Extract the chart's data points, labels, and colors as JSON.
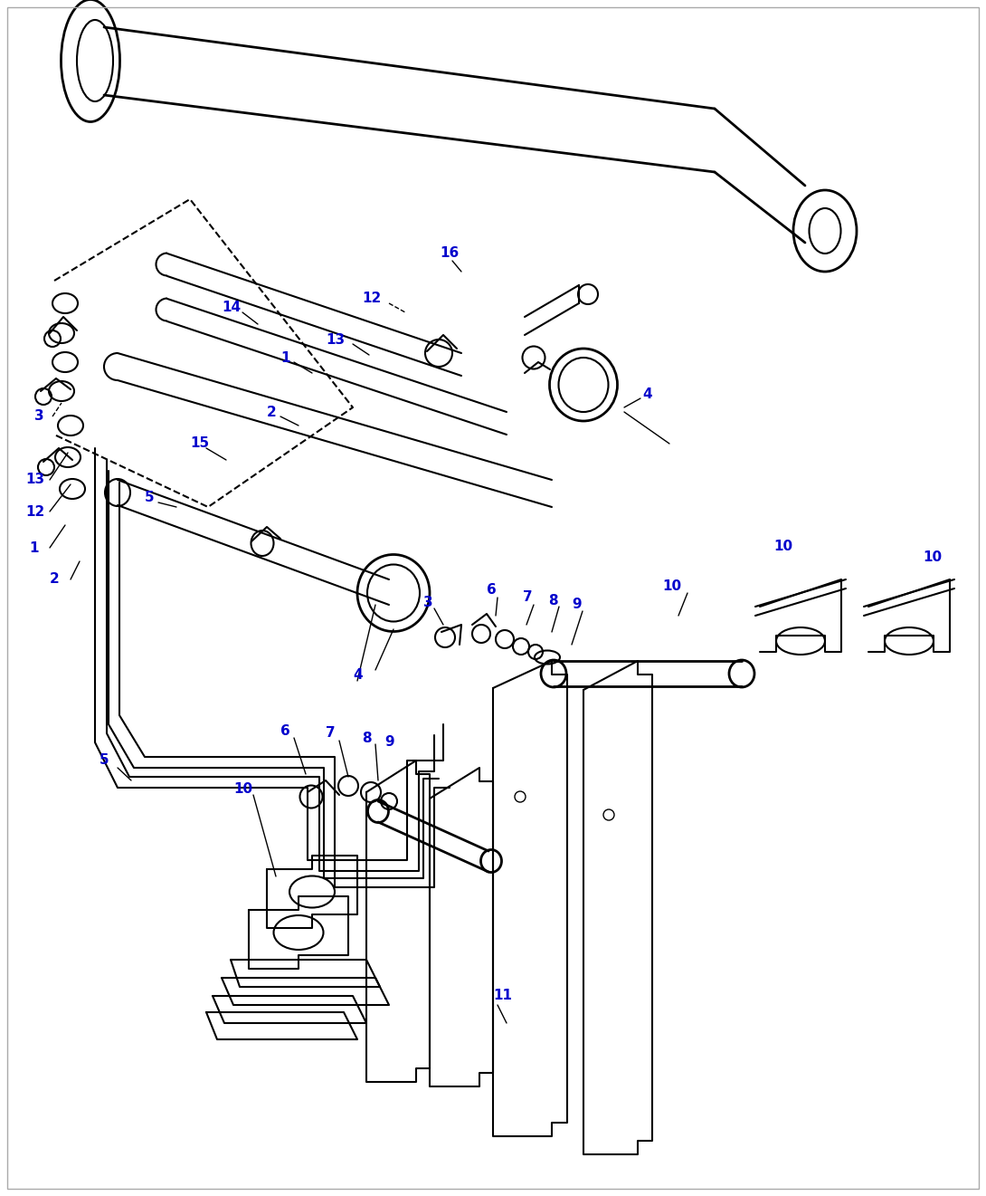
{
  "label_color": "#0000CC",
  "label_fontsize": 11,
  "bg_color": "#FFFFFF",
  "line_color": "#000000",
  "figsize": [
    10.9,
    13.21
  ],
  "dpi": 100,
  "border_color": "#AAAAAA"
}
